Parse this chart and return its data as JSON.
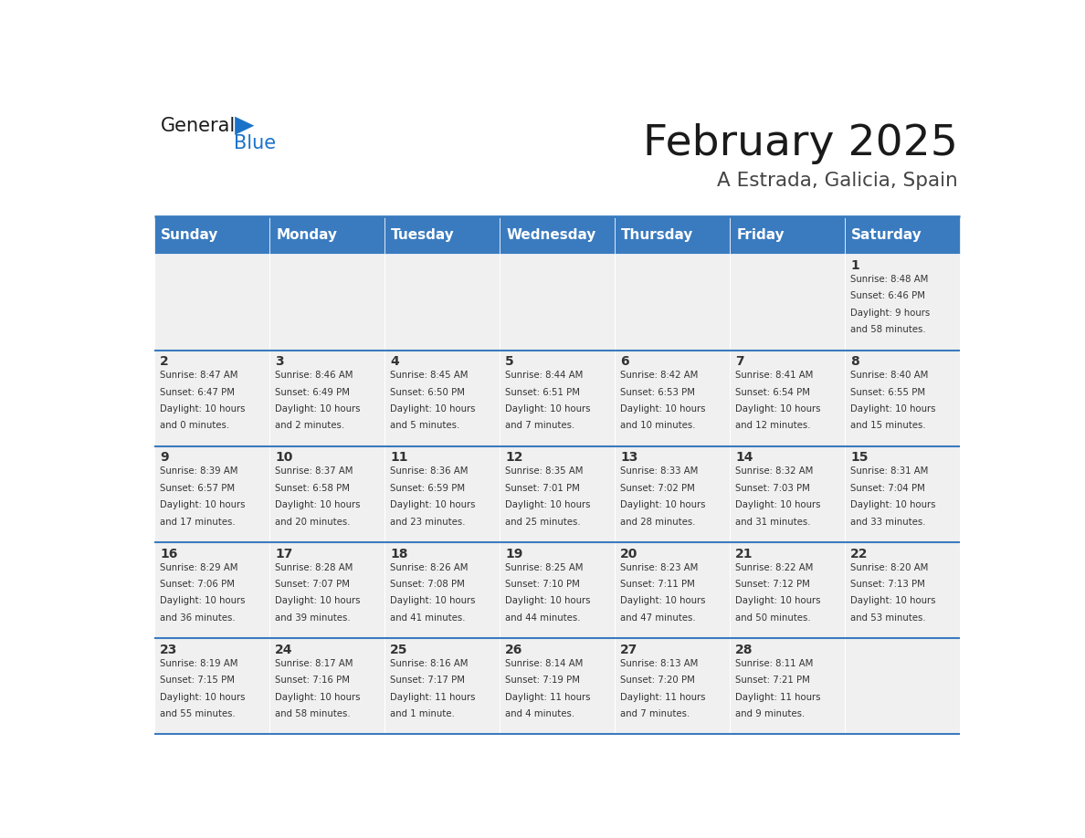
{
  "title": "February 2025",
  "subtitle": "A Estrada, Galicia, Spain",
  "header_bg": "#3a7bbf",
  "header_text_color": "#ffffff",
  "cell_bg_light": "#f0f0f0",
  "day_text_color": "#333333",
  "info_text_color": "#333333",
  "separator_color": "#3a7bbf",
  "header_days": [
    "Sunday",
    "Monday",
    "Tuesday",
    "Wednesday",
    "Thursday",
    "Friday",
    "Saturday"
  ],
  "days_data": [
    {
      "day": 1,
      "col": 6,
      "row": 0,
      "sunrise": "8:48 AM",
      "sunset": "6:46 PM",
      "daylight_h": "9 hours",
      "daylight_m": "and 58 minutes."
    },
    {
      "day": 2,
      "col": 0,
      "row": 1,
      "sunrise": "8:47 AM",
      "sunset": "6:47 PM",
      "daylight_h": "10 hours",
      "daylight_m": "and 0 minutes."
    },
    {
      "day": 3,
      "col": 1,
      "row": 1,
      "sunrise": "8:46 AM",
      "sunset": "6:49 PM",
      "daylight_h": "10 hours",
      "daylight_m": "and 2 minutes."
    },
    {
      "day": 4,
      "col": 2,
      "row": 1,
      "sunrise": "8:45 AM",
      "sunset": "6:50 PM",
      "daylight_h": "10 hours",
      "daylight_m": "and 5 minutes."
    },
    {
      "day": 5,
      "col": 3,
      "row": 1,
      "sunrise": "8:44 AM",
      "sunset": "6:51 PM",
      "daylight_h": "10 hours",
      "daylight_m": "and 7 minutes."
    },
    {
      "day": 6,
      "col": 4,
      "row": 1,
      "sunrise": "8:42 AM",
      "sunset": "6:53 PM",
      "daylight_h": "10 hours",
      "daylight_m": "and 10 minutes."
    },
    {
      "day": 7,
      "col": 5,
      "row": 1,
      "sunrise": "8:41 AM",
      "sunset": "6:54 PM",
      "daylight_h": "10 hours",
      "daylight_m": "and 12 minutes."
    },
    {
      "day": 8,
      "col": 6,
      "row": 1,
      "sunrise": "8:40 AM",
      "sunset": "6:55 PM",
      "daylight_h": "10 hours",
      "daylight_m": "and 15 minutes."
    },
    {
      "day": 9,
      "col": 0,
      "row": 2,
      "sunrise": "8:39 AM",
      "sunset": "6:57 PM",
      "daylight_h": "10 hours",
      "daylight_m": "and 17 minutes."
    },
    {
      "day": 10,
      "col": 1,
      "row": 2,
      "sunrise": "8:37 AM",
      "sunset": "6:58 PM",
      "daylight_h": "10 hours",
      "daylight_m": "and 20 minutes."
    },
    {
      "day": 11,
      "col": 2,
      "row": 2,
      "sunrise": "8:36 AM",
      "sunset": "6:59 PM",
      "daylight_h": "10 hours",
      "daylight_m": "and 23 minutes."
    },
    {
      "day": 12,
      "col": 3,
      "row": 2,
      "sunrise": "8:35 AM",
      "sunset": "7:01 PM",
      "daylight_h": "10 hours",
      "daylight_m": "and 25 minutes."
    },
    {
      "day": 13,
      "col": 4,
      "row": 2,
      "sunrise": "8:33 AM",
      "sunset": "7:02 PM",
      "daylight_h": "10 hours",
      "daylight_m": "and 28 minutes."
    },
    {
      "day": 14,
      "col": 5,
      "row": 2,
      "sunrise": "8:32 AM",
      "sunset": "7:03 PM",
      "daylight_h": "10 hours",
      "daylight_m": "and 31 minutes."
    },
    {
      "day": 15,
      "col": 6,
      "row": 2,
      "sunrise": "8:31 AM",
      "sunset": "7:04 PM",
      "daylight_h": "10 hours",
      "daylight_m": "and 33 minutes."
    },
    {
      "day": 16,
      "col": 0,
      "row": 3,
      "sunrise": "8:29 AM",
      "sunset": "7:06 PM",
      "daylight_h": "10 hours",
      "daylight_m": "and 36 minutes."
    },
    {
      "day": 17,
      "col": 1,
      "row": 3,
      "sunrise": "8:28 AM",
      "sunset": "7:07 PM",
      "daylight_h": "10 hours",
      "daylight_m": "and 39 minutes."
    },
    {
      "day": 18,
      "col": 2,
      "row": 3,
      "sunrise": "8:26 AM",
      "sunset": "7:08 PM",
      "daylight_h": "10 hours",
      "daylight_m": "and 41 minutes."
    },
    {
      "day": 19,
      "col": 3,
      "row": 3,
      "sunrise": "8:25 AM",
      "sunset": "7:10 PM",
      "daylight_h": "10 hours",
      "daylight_m": "and 44 minutes."
    },
    {
      "day": 20,
      "col": 4,
      "row": 3,
      "sunrise": "8:23 AM",
      "sunset": "7:11 PM",
      "daylight_h": "10 hours",
      "daylight_m": "and 47 minutes."
    },
    {
      "day": 21,
      "col": 5,
      "row": 3,
      "sunrise": "8:22 AM",
      "sunset": "7:12 PM",
      "daylight_h": "10 hours",
      "daylight_m": "and 50 minutes."
    },
    {
      "day": 22,
      "col": 6,
      "row": 3,
      "sunrise": "8:20 AM",
      "sunset": "7:13 PM",
      "daylight_h": "10 hours",
      "daylight_m": "and 53 minutes."
    },
    {
      "day": 23,
      "col": 0,
      "row": 4,
      "sunrise": "8:19 AM",
      "sunset": "7:15 PM",
      "daylight_h": "10 hours",
      "daylight_m": "and 55 minutes."
    },
    {
      "day": 24,
      "col": 1,
      "row": 4,
      "sunrise": "8:17 AM",
      "sunset": "7:16 PM",
      "daylight_h": "10 hours",
      "daylight_m": "and 58 minutes."
    },
    {
      "day": 25,
      "col": 2,
      "row": 4,
      "sunrise": "8:16 AM",
      "sunset": "7:17 PM",
      "daylight_h": "11 hours",
      "daylight_m": "and 1 minute."
    },
    {
      "day": 26,
      "col": 3,
      "row": 4,
      "sunrise": "8:14 AM",
      "sunset": "7:19 PM",
      "daylight_h": "11 hours",
      "daylight_m": "and 4 minutes."
    },
    {
      "day": 27,
      "col": 4,
      "row": 4,
      "sunrise": "8:13 AM",
      "sunset": "7:20 PM",
      "daylight_h": "11 hours",
      "daylight_m": "and 7 minutes."
    },
    {
      "day": 28,
      "col": 5,
      "row": 4,
      "sunrise": "8:11 AM",
      "sunset": "7:21 PM",
      "daylight_h": "11 hours",
      "daylight_m": "and 9 minutes."
    }
  ],
  "num_rows": 5,
  "logo_text_general": "General",
  "logo_text_blue": "Blue",
  "logo_color_general": "#1a1a1a",
  "logo_color_blue": "#1a73c9",
  "logo_triangle_color": "#1a73c9"
}
